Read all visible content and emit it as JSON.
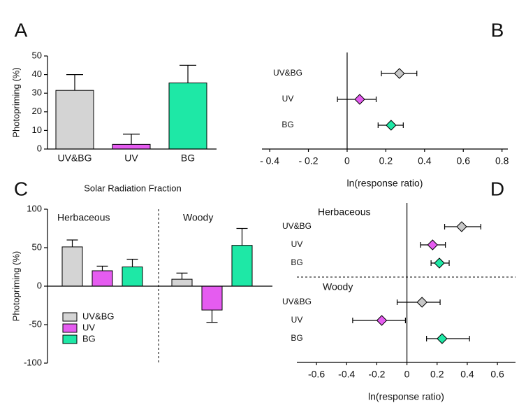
{
  "chart_data": [
    {
      "type": "bar",
      "panel": "A",
      "categories": [
        "UV&BG",
        "UV",
        "BG"
      ],
      "values": [
        31.5,
        2.5,
        35.5
      ],
      "errors": [
        8.5,
        5.5,
        9.5
      ],
      "colors": [
        "#d4d4d4",
        "#e55cf0",
        "#1ee8a6"
      ],
      "ylabel": "Photopriming (%)",
      "xlabel": "Solar Radiation Fraction",
      "ylim": [
        0,
        50
      ],
      "yticks": [
        0,
        10,
        20,
        30,
        40,
        50
      ]
    },
    {
      "type": "forest",
      "panel": "B",
      "xlabel": "ln(response ratio)",
      "xlim": [
        -0.44,
        0.83
      ],
      "xticks": [
        {
          "value": -0.4,
          "label": "- 0.4"
        },
        {
          "value": -0.2,
          "label": "- 0.2"
        },
        0,
        0.2,
        0.4,
        0.6,
        0.8
      ],
      "groups": [
        {
          "categories": [
            "UV&BG",
            "UV",
            "BG"
          ],
          "values": [
            0.27,
            0.065,
            0.227
          ],
          "lower": [
            0.177,
            -0.05,
            0.16
          ],
          "upper": [
            0.36,
            0.15,
            0.29
          ],
          "colors": [
            "#c8c8c8",
            "#e55cf0",
            "#1ee8a6"
          ]
        }
      ]
    },
    {
      "type": "grouped_bar",
      "panel": "C",
      "categories": [
        "Herbaceous",
        "Woody"
      ],
      "ylabel": "Photopriming (%)",
      "ylim": [
        -100,
        100
      ],
      "yticks": [
        -100,
        -50,
        0,
        50,
        100
      ],
      "legend": "lower left",
      "series": [
        {
          "name": "UV&BG",
          "color": "#d4d4d4",
          "values": [
            51,
            9
          ],
          "errors": [
            9,
            8
          ]
        },
        {
          "name": "UV",
          "color": "#e55cf0",
          "values": [
            20,
            -31
          ],
          "errors": [
            6,
            16
          ]
        },
        {
          "name": "BG",
          "color": "#1ee8a6",
          "values": [
            25,
            53
          ],
          "errors": [
            10,
            22
          ]
        }
      ]
    },
    {
      "type": "forest",
      "panel": "D",
      "xlabel": "ln(response ratio)",
      "xlim": [
        -0.73,
        0.72
      ],
      "xticks": [
        -0.6,
        -0.4,
        -0.2,
        0,
        0.2,
        0.4,
        0.6
      ],
      "groups": [
        {
          "name": "Herbaceous",
          "categories": [
            "UV&BG",
            "UV",
            "BG"
          ],
          "values": [
            0.363,
            0.17,
            0.215
          ],
          "lower": [
            0.25,
            0.09,
            0.16
          ],
          "upper": [
            0.49,
            0.255,
            0.28
          ],
          "colors": [
            "#c8c8c8",
            "#e55cf0",
            "#1ee8a6"
          ]
        },
        {
          "name": "Woody",
          "categories": [
            "UV&BG",
            "UV",
            "BG"
          ],
          "values": [
            0.1,
            -0.167,
            0.233
          ],
          "lower": [
            -0.065,
            -0.36,
            0.13
          ],
          "upper": [
            0.22,
            -0.01,
            0.415
          ],
          "colors": [
            "#c8c8c8",
            "#e55cf0",
            "#1ee8a6"
          ]
        }
      ]
    }
  ]
}
